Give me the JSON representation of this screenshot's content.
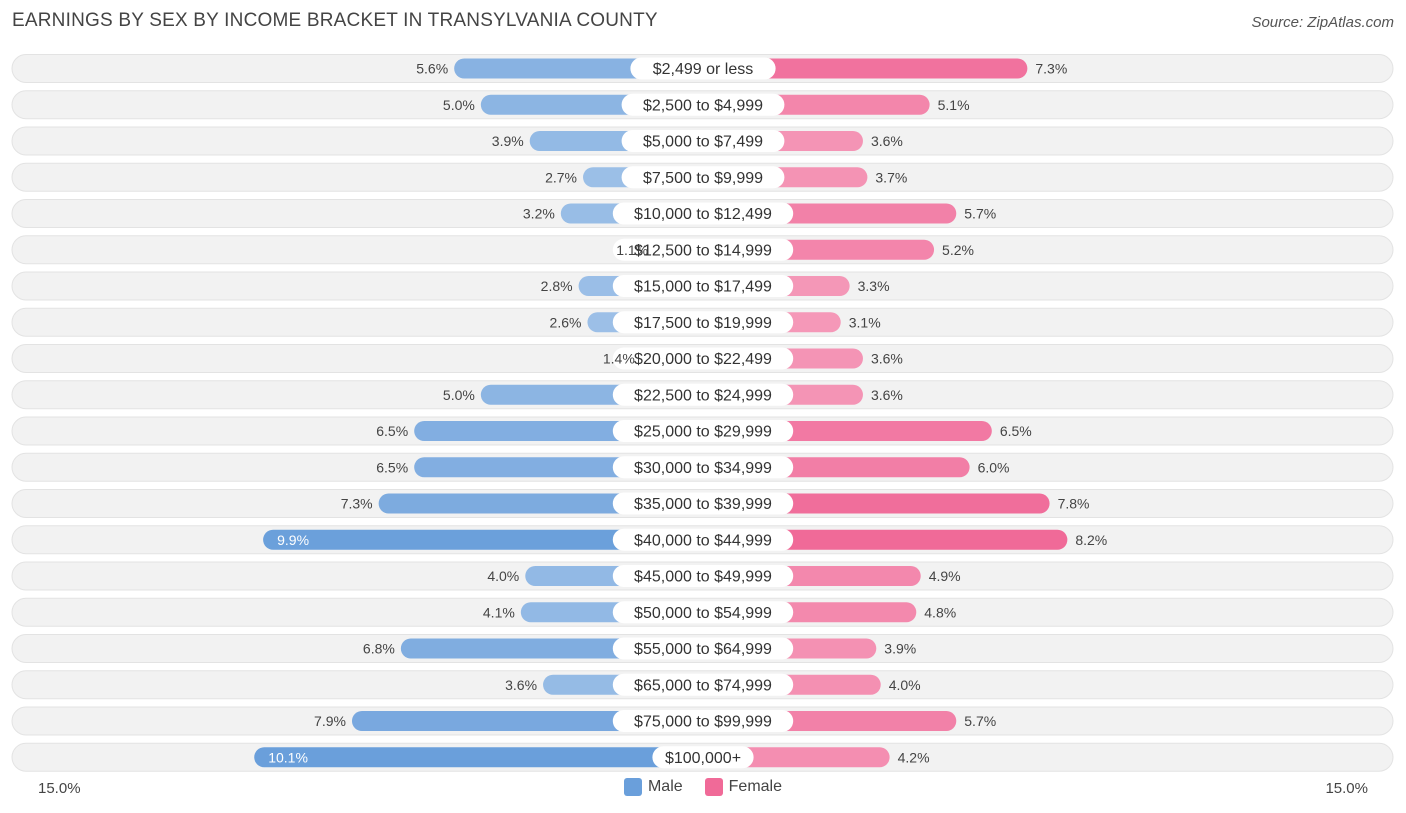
{
  "title": "EARNINGS BY SEX BY INCOME BRACKET IN TRANSYLVANIA COUNTY",
  "source": "Source: ZipAtlas.com",
  "axis": {
    "left_label": "15.0%",
    "right_label": "15.0%"
  },
  "legend": [
    {
      "label": "Male",
      "color": "#6a9fdb"
    },
    {
      "label": "Female",
      "color": "#f06a98"
    }
  ],
  "chart_data": {
    "type": "bar",
    "orientation": "horizontal-diverging",
    "title": "EARNINGS BY SEX BY INCOME BRACKET IN TRANSYLVANIA COUNTY",
    "xlim": [
      -15.0,
      15.0
    ],
    "unit": "%",
    "categories": [
      "$2,499 or less",
      "$2,500 to $4,999",
      "$5,000 to $7,499",
      "$7,500 to $9,999",
      "$10,000 to $12,499",
      "$12,500 to $14,999",
      "$15,000 to $17,499",
      "$17,500 to $19,999",
      "$20,000 to $22,499",
      "$22,500 to $24,999",
      "$25,000 to $29,999",
      "$30,000 to $34,999",
      "$35,000 to $39,999",
      "$40,000 to $44,999",
      "$45,000 to $49,999",
      "$50,000 to $54,999",
      "$55,000 to $64,999",
      "$65,000 to $74,999",
      "$75,000 to $99,999",
      "$100,000+"
    ],
    "series": [
      {
        "name": "Male",
        "color": "#6a9fdb",
        "values": [
          5.6,
          5.0,
          3.9,
          2.7,
          3.2,
          1.1,
          2.8,
          2.6,
          1.4,
          5.0,
          6.5,
          6.5,
          7.3,
          9.9,
          4.0,
          4.1,
          6.8,
          3.6,
          7.9,
          10.1
        ],
        "labels": [
          "5.6%",
          "5.0%",
          "3.9%",
          "2.7%",
          "3.2%",
          "1.1%",
          "2.8%",
          "2.6%",
          "1.4%",
          "5.0%",
          "6.5%",
          "6.5%",
          "7.3%",
          "9.9%",
          "4.0%",
          "4.1%",
          "6.8%",
          "3.6%",
          "7.9%",
          "10.1%"
        ]
      },
      {
        "name": "Female",
        "color": "#f06a98",
        "values": [
          7.3,
          5.1,
          3.6,
          3.7,
          5.7,
          5.2,
          3.3,
          3.1,
          3.6,
          3.6,
          6.5,
          6.0,
          7.8,
          8.2,
          4.9,
          4.8,
          3.9,
          4.0,
          5.7,
          4.2
        ],
        "labels": [
          "7.3%",
          "5.1%",
          "3.6%",
          "3.7%",
          "5.7%",
          "5.2%",
          "3.3%",
          "3.1%",
          "3.6%",
          "3.6%",
          "6.5%",
          "6.0%",
          "7.8%",
          "8.2%",
          "4.9%",
          "4.8%",
          "3.9%",
          "4.0%",
          "5.7%",
          "4.2%"
        ]
      }
    ]
  }
}
